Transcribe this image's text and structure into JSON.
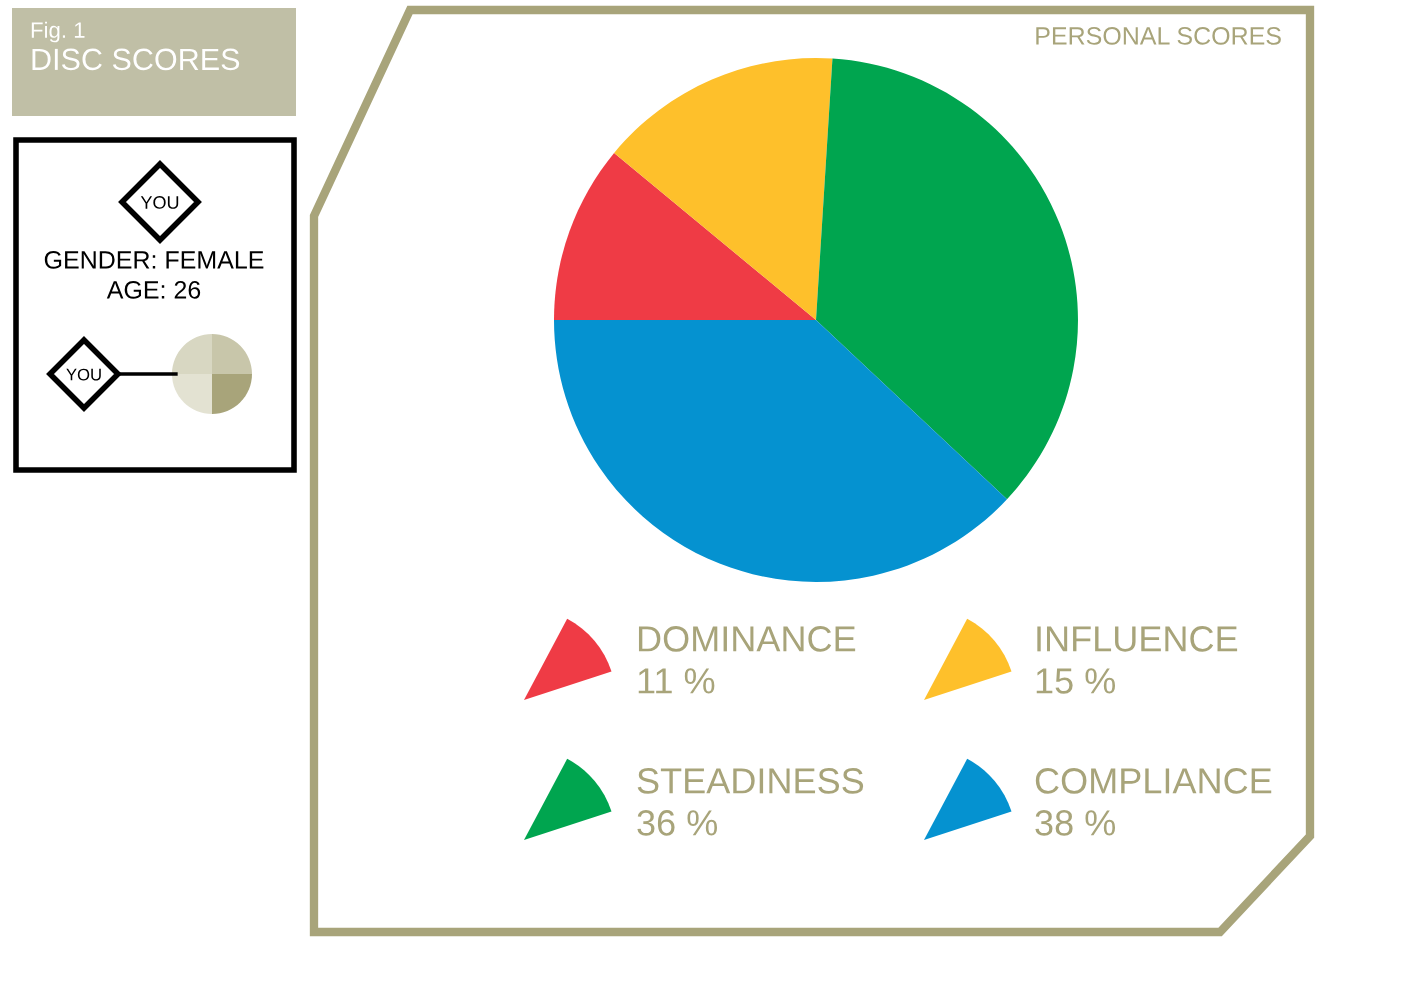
{
  "chart_data": {
    "type": "pie",
    "title": "PERSONAL SCORES",
    "categories": [
      "DOMINANCE",
      "INFLUENCE",
      "STEADINESS",
      "COMPLIANCE"
    ],
    "values": [
      11,
      15,
      36,
      38
    ],
    "colors": [
      "#ef3b45",
      "#fec02b",
      "#00a54f",
      "#0592d0"
    ],
    "value_labels": [
      "11 %",
      "15 %",
      "36 %",
      "38 %"
    ],
    "legend": "bottom",
    "annotations": [
      "Fig. 1",
      "DISC SCORES",
      "YOU",
      "GENDER: FEMALE",
      "AGE: 26",
      "YOU"
    ]
  }
}
